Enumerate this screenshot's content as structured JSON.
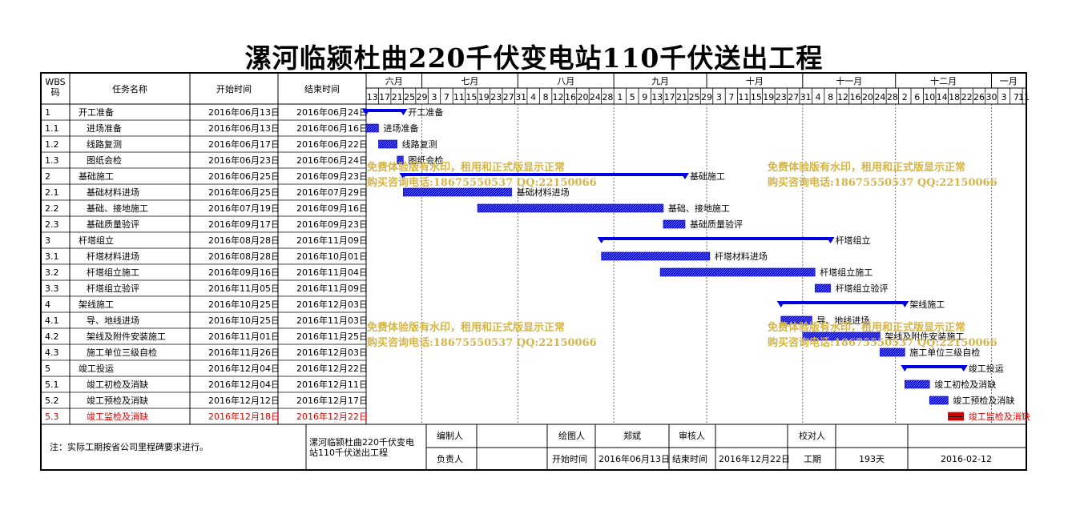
{
  "title": "漯河临颍杜曲220千伏变电站110千伏送出工程",
  "table_header": {
    "wbs": "WBS\n码",
    "name": "任务名称",
    "start": "开始时间",
    "end": "结束时间"
  },
  "months": [
    "六月",
    "七月",
    "八月",
    "九月",
    "十月",
    "十一月",
    "十二月",
    "一月"
  ],
  "day_ticks": [
    "13",
    "17",
    "21",
    "25",
    "29",
    "3",
    "7",
    "11",
    "15",
    "19",
    "23",
    "27",
    "31",
    "4",
    "8",
    "12",
    "16",
    "20",
    "24",
    "28",
    "1",
    "5",
    "9",
    "13",
    "17",
    "21",
    "25",
    "29",
    "3",
    "7",
    "11",
    "15",
    "19",
    "23",
    "27",
    "31",
    "4",
    "8",
    "12",
    "16",
    "20",
    "24",
    "28",
    "2",
    "6",
    "10",
    "14",
    "18",
    "22",
    "26",
    "30",
    "3",
    "7",
    "11"
  ],
  "chart_data": {
    "type": "gantt",
    "title": "漯河临颍杜曲220千伏变电站110千伏送出工程",
    "x_range": [
      "2016-06-13",
      "2017-01-12"
    ],
    "tasks": [
      {
        "wbs": "1",
        "name": "开工准备",
        "start": "2016年06月13日",
        "end": "2016年06月24日",
        "s": "2016-06-13",
        "e": "2016-06-24",
        "summary": true,
        "level": 1
      },
      {
        "wbs": "1.1",
        "name": "进场准备",
        "start": "2016年06月13日",
        "end": "2016年06月16日",
        "s": "2016-06-13",
        "e": "2016-06-16",
        "summary": false,
        "level": 2
      },
      {
        "wbs": "1.2",
        "name": "线路复测",
        "start": "2016年06月17日",
        "end": "2016年06月22日",
        "s": "2016-06-17",
        "e": "2016-06-22",
        "summary": false,
        "level": 2
      },
      {
        "wbs": "1.3",
        "name": "图纸会检",
        "start": "2016年06月23日",
        "end": "2016年06月24日",
        "s": "2016-06-23",
        "e": "2016-06-24",
        "summary": false,
        "level": 2
      },
      {
        "wbs": "2",
        "name": "基础施工",
        "start": "2016年06月25日",
        "end": "2016年09月23日",
        "s": "2016-06-25",
        "e": "2016-09-23",
        "summary": true,
        "level": 1
      },
      {
        "wbs": "2.1",
        "name": "基础材料进场",
        "start": "2016年06月25日",
        "end": "2016年07月29日",
        "s": "2016-06-25",
        "e": "2016-07-29",
        "summary": false,
        "level": 2
      },
      {
        "wbs": "2.2",
        "name": "基础、接地施工",
        "start": "2016年07月19日",
        "end": "2016年09月16日",
        "s": "2016-07-19",
        "e": "2016-09-16",
        "summary": false,
        "level": 2
      },
      {
        "wbs": "2.3",
        "name": "基础质量验评",
        "start": "2016年09月17日",
        "end": "2016年09月23日",
        "s": "2016-09-17",
        "e": "2016-09-23",
        "summary": false,
        "level": 2
      },
      {
        "wbs": "3",
        "name": "杆塔组立",
        "start": "2016年08月28日",
        "end": "2016年11月09日",
        "s": "2016-08-28",
        "e": "2016-11-09",
        "summary": true,
        "level": 1
      },
      {
        "wbs": "3.1",
        "name": "杆塔材料进场",
        "start": "2016年08月28日",
        "end": "2016年10月01日",
        "s": "2016-08-28",
        "e": "2016-10-01",
        "summary": false,
        "level": 2
      },
      {
        "wbs": "3.2",
        "name": "杆塔组立施工",
        "start": "2016年09月16日",
        "end": "2016年11月04日",
        "s": "2016-09-16",
        "e": "2016-11-04",
        "summary": false,
        "level": 2
      },
      {
        "wbs": "3.3",
        "name": "杆塔组立验评",
        "start": "2016年11月05日",
        "end": "2016年11月09日",
        "s": "2016-11-05",
        "e": "2016-11-09",
        "summary": false,
        "level": 2
      },
      {
        "wbs": "4",
        "name": "架线施工",
        "start": "2016年10月25日",
        "end": "2016年12月03日",
        "s": "2016-10-25",
        "e": "2016-12-03",
        "summary": true,
        "level": 1
      },
      {
        "wbs": "4.1",
        "name": "导、地线进场",
        "start": "2016年10月25日",
        "end": "2016年11月03日",
        "s": "2016-10-25",
        "e": "2016-11-03",
        "summary": false,
        "level": 2
      },
      {
        "wbs": "4.2",
        "name": "架线及附件安装施工",
        "start": "2016年11月01日",
        "end": "2016年11月25日",
        "s": "2016-11-01",
        "e": "2016-11-25",
        "summary": false,
        "level": 2
      },
      {
        "wbs": "4.3",
        "name": "施工单位三级自检",
        "start": "2016年11月26日",
        "end": "2016年12月03日",
        "s": "2016-11-26",
        "e": "2016-12-03",
        "summary": false,
        "level": 2
      },
      {
        "wbs": "5",
        "name": "竣工投运",
        "start": "2016年12月04日",
        "end": "2016年12月22日",
        "s": "2016-12-04",
        "e": "2016-12-22",
        "summary": true,
        "level": 1
      },
      {
        "wbs": "5.1",
        "name": "竣工初检及消缺",
        "start": "2016年12月04日",
        "end": "2016年12月11日",
        "s": "2016-12-04",
        "e": "2016-12-11",
        "summary": false,
        "level": 2
      },
      {
        "wbs": "5.2",
        "name": "竣工预检及消缺",
        "start": "2016年12月12日",
        "end": "2016年12月17日",
        "s": "2016-12-12",
        "e": "2016-12-17",
        "summary": false,
        "level": 2
      },
      {
        "wbs": "5.3",
        "name": "竣工监检及消缺",
        "start": "2016年12月18日",
        "end": "2016年12月22日",
        "s": "2016-12-18",
        "e": "2016-12-22",
        "summary": false,
        "level": 2,
        "critical": true
      }
    ]
  },
  "watermark": {
    "line1": "免费体验版有水印，租用和正式版显示正常",
    "line2": "购买咨询电话:18675550537 QQ:22150066"
  },
  "footer": {
    "note": "注：实际工期按省公司里程碑要求进行。",
    "project_line1": "漯河临颍杜曲220千伏变电",
    "project_line2": "站110千伏送出工程",
    "editor_label": "编制人",
    "drawer_label": "绘图人",
    "drawer_value": "郑斌",
    "reviewer_label": "审核人",
    "checker_label": "校对人",
    "owner_label": "负责人",
    "start_label": "开始时间",
    "start_value": "2016年06月13日",
    "end_label": "结束时间",
    "end_value": "2016年12月22日",
    "duration_label": "工期",
    "duration_value": "193天",
    "date_value": "2016-02-12"
  },
  "colors": {
    "bar": "#0000e0",
    "critical": "#e00000",
    "watermark": "#d4b54a"
  }
}
